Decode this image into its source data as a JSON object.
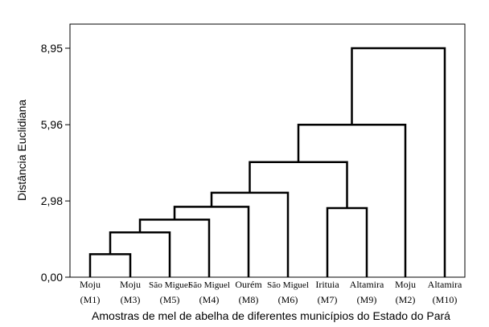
{
  "chart_data": {
    "type": "dendrogram",
    "title": "",
    "xlabel": "Amostras de mel de abelha de diferentes municípios do Estado do Pará",
    "ylabel": "Distância Euclidiana",
    "y_ticks": [
      "0,00",
      "2,98",
      "5,96",
      "8,95"
    ],
    "ylim": [
      0,
      10
    ],
    "leaves": [
      {
        "name": "Moju",
        "code": "(M1)"
      },
      {
        "name": "Moju",
        "code": "(M3)"
      },
      {
        "name": "São Miguel",
        "code": "(M5)"
      },
      {
        "name": "São Miguel",
        "code": "(M4)"
      },
      {
        "name": "Ourém",
        "code": "(M8)"
      },
      {
        "name": "São Miguel",
        "code": "(M6)"
      },
      {
        "name": "Irituia",
        "code": "(M7)"
      },
      {
        "name": "Altamira",
        "code": "(M9)"
      },
      {
        "name": "Moju",
        "code": "(M2)"
      },
      {
        "name": "Altamira",
        "code": "(M10)"
      }
    ],
    "merges": [
      {
        "left": [
          0
        ],
        "right": [
          1
        ],
        "height": 0.9
      },
      {
        "left": [
          0,
          1
        ],
        "right": [
          2
        ],
        "height": 1.75
      },
      {
        "left": [
          0,
          1,
          2
        ],
        "right": [
          3
        ],
        "height": 2.25
      },
      {
        "left": [
          0,
          1,
          2,
          3
        ],
        "right": [
          4
        ],
        "height": 2.75
      },
      {
        "left": [
          0,
          1,
          2,
          3,
          4
        ],
        "right": [
          5
        ],
        "height": 3.3
      },
      {
        "left": [
          6
        ],
        "right": [
          7
        ],
        "height": 2.7
      },
      {
        "left": [
          0,
          1,
          2,
          3,
          4,
          5
        ],
        "right": [
          6,
          7
        ],
        "height": 4.5
      },
      {
        "left": [
          0,
          1,
          2,
          3,
          4,
          5,
          6,
          7
        ],
        "right": [
          8
        ],
        "height": 5.96
      },
      {
        "left": [
          0,
          1,
          2,
          3,
          4,
          5,
          6,
          7,
          8
        ],
        "right": [
          9
        ],
        "height": 8.95
      }
    ]
  }
}
